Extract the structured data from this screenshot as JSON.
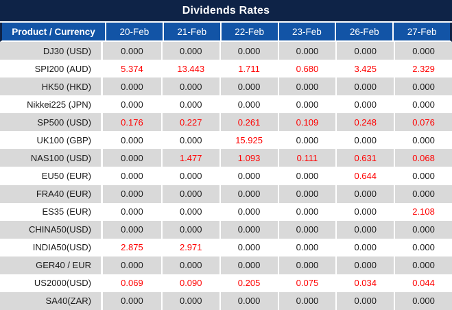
{
  "title": "Dividends Rates",
  "columns": [
    "Product / Currency",
    "20-Feb",
    "21-Feb",
    "22-Feb",
    "23-Feb",
    "26-Feb",
    "27-Feb"
  ],
  "rows": [
    {
      "product": "DJ30 (USD)",
      "values": [
        "0.000",
        "0.000",
        "0.000",
        "0.000",
        "0.000",
        "0.000"
      ]
    },
    {
      "product": "SPI200 (AUD)",
      "values": [
        "5.374",
        "13.443",
        "1.711",
        "0.680",
        "3.425",
        "2.329"
      ]
    },
    {
      "product": "HK50 (HKD)",
      "values": [
        "0.000",
        "0.000",
        "0.000",
        "0.000",
        "0.000",
        "0.000"
      ]
    },
    {
      "product": "Nikkei225 (JPN)",
      "values": [
        "0.000",
        "0.000",
        "0.000",
        "0.000",
        "0.000",
        "0.000"
      ]
    },
    {
      "product": "SP500 (USD)",
      "values": [
        "0.176",
        "0.227",
        "0.261",
        "0.109",
        "0.248",
        "0.076"
      ]
    },
    {
      "product": "UK100 (GBP)",
      "values": [
        "0.000",
        "0.000",
        "15.925",
        "0.000",
        "0.000",
        "0.000"
      ]
    },
    {
      "product": "NAS100 (USD)",
      "values": [
        "0.000",
        "1.477",
        "1.093",
        "0.111",
        "0.631",
        "0.068"
      ]
    },
    {
      "product": "EU50 (EUR)",
      "values": [
        "0.000",
        "0.000",
        "0.000",
        "0.000",
        "0.644",
        "0.000"
      ]
    },
    {
      "product": "FRA40 (EUR)",
      "values": [
        "0.000",
        "0.000",
        "0.000",
        "0.000",
        "0.000",
        "0.000"
      ]
    },
    {
      "product": "ES35 (EUR)",
      "values": [
        "0.000",
        "0.000",
        "0.000",
        "0.000",
        "0.000",
        "2.108"
      ]
    },
    {
      "product": "CHINA50(USD)",
      "values": [
        "0.000",
        "0.000",
        "0.000",
        "0.000",
        "0.000",
        "0.000"
      ]
    },
    {
      "product": "INDIA50(USD)",
      "values": [
        "2.875",
        "2.971",
        "0.000",
        "0.000",
        "0.000",
        "0.000"
      ]
    },
    {
      "product": "GER40 / EUR",
      "values": [
        "0.000",
        "0.000",
        "0.000",
        "0.000",
        "0.000",
        "0.000"
      ]
    },
    {
      "product": "US2000(USD)",
      "values": [
        "0.069",
        "0.090",
        "0.205",
        "0.075",
        "0.034",
        "0.044"
      ]
    },
    {
      "product": "SA40(ZAR)",
      "values": [
        "0.000",
        "0.000",
        "0.000",
        "0.000",
        "0.000",
        "0.000"
      ]
    }
  ],
  "colors": {
    "title_bg": "#0E2347",
    "header_bg": "#1254A6",
    "header_text": "#FFFFFF",
    "row_even_bg": "#D9D9D9",
    "row_odd_bg": "#FFFFFF",
    "value_text": "#1A1A1A",
    "nonzero_value_text": "#FF0000"
  }
}
